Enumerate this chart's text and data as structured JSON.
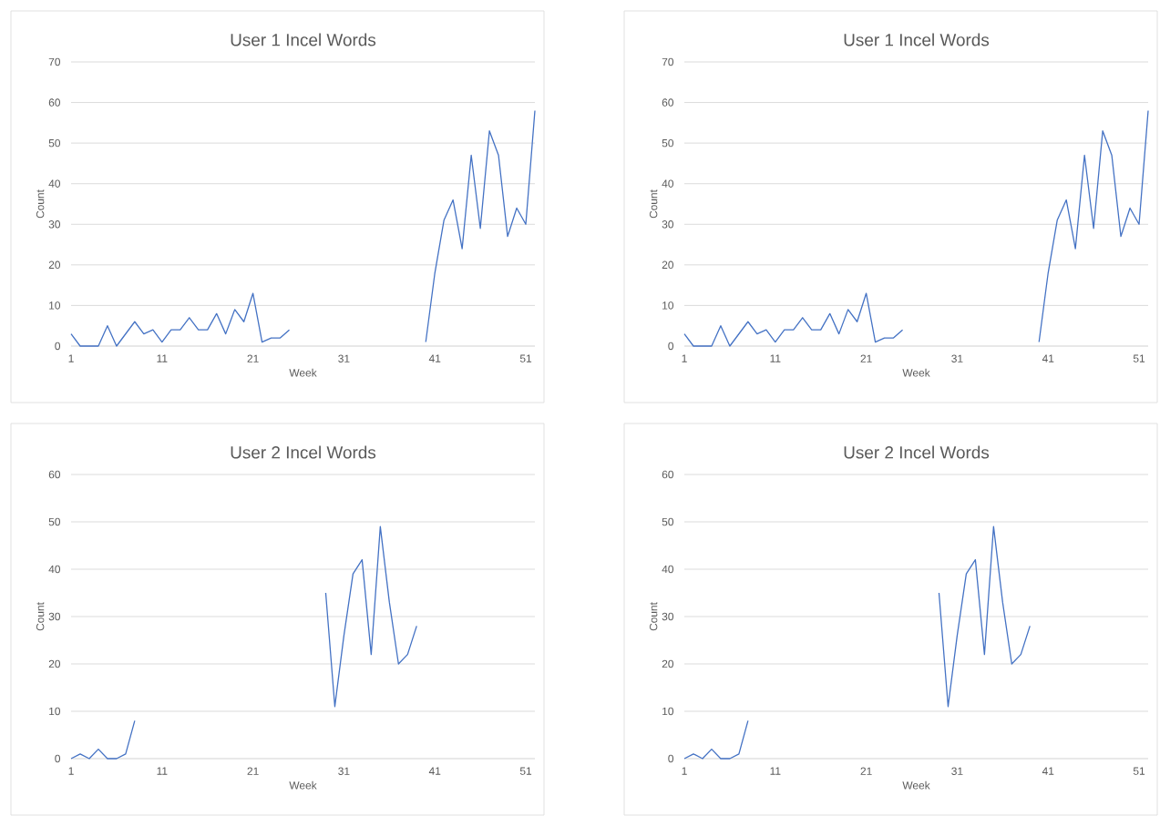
{
  "chart_data": [
    {
      "type": "line",
      "title": "User 1 Incel Words",
      "xlabel": "Week",
      "ylabel": "Count",
      "x": [
        1,
        2,
        3,
        4,
        5,
        6,
        7,
        8,
        9,
        10,
        11,
        12,
        13,
        14,
        15,
        16,
        17,
        18,
        19,
        20,
        21,
        22,
        23,
        24,
        25,
        26,
        27,
        28,
        29,
        30,
        31,
        32,
        33,
        34,
        35,
        36,
        37,
        38,
        39,
        40,
        41,
        42,
        43,
        44,
        45,
        46,
        47,
        48,
        49,
        50,
        51,
        52
      ],
      "values": [
        3,
        0,
        0,
        0,
        5,
        0,
        3,
        6,
        3,
        4,
        1,
        4,
        4,
        7,
        4,
        4,
        8,
        3,
        9,
        6,
        13,
        1,
        2,
        2,
        4,
        null,
        null,
        null,
        null,
        null,
        null,
        null,
        null,
        null,
        null,
        null,
        null,
        null,
        null,
        1,
        18,
        31,
        36,
        24,
        47,
        29,
        53,
        47,
        27,
        34,
        30,
        58
      ],
      "color": "#4472c4",
      "xlim": [
        1,
        52
      ],
      "ylim": [
        0,
        70
      ],
      "xticks": [
        1,
        11,
        21,
        31,
        41,
        51
      ],
      "yticks": [
        0,
        10,
        20,
        30,
        40,
        50,
        60,
        70
      ],
      "grid": "y"
    },
    {
      "type": "line",
      "title": "User 1 Incel Words",
      "xlabel": "Week",
      "ylabel": "Count",
      "x": [
        1,
        2,
        3,
        4,
        5,
        6,
        7,
        8,
        9,
        10,
        11,
        12,
        13,
        14,
        15,
        16,
        17,
        18,
        19,
        20,
        21,
        22,
        23,
        24,
        25,
        26,
        27,
        28,
        29,
        30,
        31,
        32,
        33,
        34,
        35,
        36,
        37,
        38,
        39,
        40,
        41,
        42,
        43,
        44,
        45,
        46,
        47,
        48,
        49,
        50,
        51,
        52
      ],
      "values": [
        3,
        0,
        0,
        0,
        5,
        0,
        3,
        6,
        3,
        4,
        1,
        4,
        4,
        7,
        4,
        4,
        8,
        3,
        9,
        6,
        13,
        1,
        2,
        2,
        4,
        null,
        null,
        null,
        null,
        null,
        null,
        null,
        null,
        null,
        null,
        null,
        null,
        null,
        null,
        1,
        18,
        31,
        36,
        24,
        47,
        29,
        53,
        47,
        27,
        34,
        30,
        58
      ],
      "color": "#4472c4",
      "xlim": [
        1,
        52
      ],
      "ylim": [
        0,
        70
      ],
      "xticks": [
        1,
        11,
        21,
        31,
        41,
        51
      ],
      "yticks": [
        0,
        10,
        20,
        30,
        40,
        50,
        60,
        70
      ],
      "grid": "y"
    },
    {
      "type": "line",
      "title": "User 2 Incel Words",
      "xlabel": "Week",
      "ylabel": "Count",
      "x": [
        1,
        2,
        3,
        4,
        5,
        6,
        7,
        8,
        9,
        10,
        11,
        12,
        13,
        14,
        15,
        16,
        17,
        18,
        19,
        20,
        21,
        22,
        23,
        24,
        25,
        26,
        27,
        28,
        29,
        30,
        31,
        32,
        33,
        34,
        35,
        36,
        37,
        38,
        39
      ],
      "values": [
        0,
        1,
        0,
        2,
        0,
        0,
        1,
        8,
        null,
        null,
        null,
        null,
        null,
        null,
        null,
        null,
        null,
        null,
        null,
        null,
        null,
        null,
        null,
        null,
        null,
        null,
        null,
        null,
        35,
        11,
        26,
        39,
        42,
        22,
        49,
        33,
        20,
        22,
        28
      ],
      "color": "#4472c4",
      "xlim": [
        1,
        52
      ],
      "ylim": [
        0,
        60
      ],
      "xticks": [
        1,
        11,
        21,
        31,
        41,
        51
      ],
      "yticks": [
        0,
        10,
        20,
        30,
        40,
        50,
        60
      ],
      "grid": "y"
    },
    {
      "type": "line",
      "title": "User 2 Incel Words",
      "xlabel": "Week",
      "ylabel": "Count",
      "x": [
        1,
        2,
        3,
        4,
        5,
        6,
        7,
        8,
        9,
        10,
        11,
        12,
        13,
        14,
        15,
        16,
        17,
        18,
        19,
        20,
        21,
        22,
        23,
        24,
        25,
        26,
        27,
        28,
        29,
        30,
        31,
        32,
        33,
        34,
        35,
        36,
        37,
        38,
        39
      ],
      "values": [
        0,
        1,
        0,
        2,
        0,
        0,
        1,
        8,
        null,
        null,
        null,
        null,
        null,
        null,
        null,
        null,
        null,
        null,
        null,
        null,
        null,
        null,
        null,
        null,
        null,
        null,
        null,
        null,
        35,
        11,
        26,
        39,
        42,
        22,
        49,
        33,
        20,
        22,
        28
      ],
      "color": "#4472c4",
      "xlim": [
        1,
        52
      ],
      "ylim": [
        0,
        60
      ],
      "xticks": [
        1,
        11,
        21,
        31,
        41,
        51
      ],
      "yticks": [
        0,
        10,
        20,
        30,
        40,
        50,
        60
      ],
      "grid": "y"
    }
  ]
}
